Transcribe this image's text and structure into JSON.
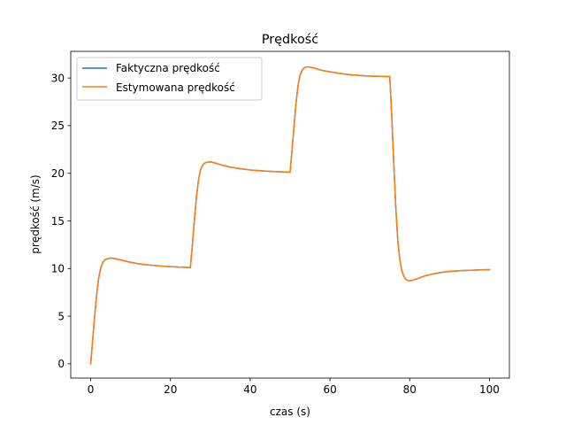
{
  "colors": {
    "actual": "#1f77b4",
    "estimated": "#ff7f0e"
  },
  "chart_data": {
    "type": "line",
    "title": "Prędkość",
    "xlabel": "czas (s)",
    "ylabel": "prędkość (m/s)",
    "xlim": [
      -5,
      105
    ],
    "ylim": [
      -1.5,
      32.8
    ],
    "xticks": [
      0,
      20,
      40,
      60,
      80,
      100
    ],
    "yticks": [
      0,
      5,
      10,
      15,
      20,
      25,
      30
    ],
    "grid": false,
    "legend_position": "top-left",
    "series": [
      {
        "name": "Faktyczna prędkość",
        "x": [
          0,
          0.5,
          1,
          1.5,
          2,
          2.5,
          3,
          3.5,
          4,
          5,
          6,
          8,
          10,
          12,
          15,
          18,
          20,
          22,
          24,
          25,
          25.5,
          26,
          26.5,
          27,
          27.5,
          28,
          28.5,
          29,
          30,
          31,
          33,
          35,
          38,
          40,
          43,
          45,
          48,
          50,
          50.5,
          51,
          51.5,
          52,
          52.5,
          53,
          53.5,
          54,
          55,
          56,
          58,
          60,
          63,
          65,
          68,
          70,
          73,
          75,
          75.5,
          76,
          76.5,
          77,
          77.5,
          78,
          78.5,
          79,
          80,
          81,
          82,
          84,
          86,
          88,
          90,
          93,
          96,
          98,
          100
        ],
        "y": [
          0,
          2.5,
          5.0,
          7.3,
          9.0,
          10.0,
          10.6,
          10.9,
          11.0,
          11.1,
          11.05,
          10.85,
          10.65,
          10.5,
          10.35,
          10.25,
          10.2,
          10.15,
          10.12,
          10.1,
          12.5,
          15.0,
          17.4,
          19.2,
          20.3,
          20.8,
          21.05,
          21.15,
          21.2,
          21.1,
          20.85,
          20.65,
          20.45,
          20.35,
          20.25,
          20.2,
          20.15,
          20.12,
          22.5,
          25.0,
          27.4,
          29.2,
          30.3,
          30.8,
          31.05,
          31.15,
          31.15,
          31.05,
          30.8,
          30.65,
          30.45,
          30.35,
          30.25,
          30.2,
          30.18,
          30.15,
          26.0,
          21.0,
          16.5,
          13.0,
          11.0,
          9.8,
          9.2,
          8.85,
          8.7,
          8.8,
          8.95,
          9.25,
          9.45,
          9.6,
          9.7,
          9.78,
          9.83,
          9.86,
          9.88
        ]
      },
      {
        "name": "Estymowana prędkość",
        "x": [
          0,
          0.5,
          1,
          1.5,
          2,
          2.5,
          3,
          3.5,
          4,
          5,
          6,
          8,
          10,
          12,
          15,
          18,
          20,
          22,
          24,
          25,
          25.5,
          26,
          26.5,
          27,
          27.5,
          28,
          28.5,
          29,
          30,
          31,
          33,
          35,
          38,
          40,
          43,
          45,
          48,
          50,
          50.5,
          51,
          51.5,
          52,
          52.5,
          53,
          53.5,
          54,
          55,
          56,
          58,
          60,
          63,
          65,
          68,
          70,
          73,
          75,
          75.5,
          76,
          76.5,
          77,
          77.5,
          78,
          78.5,
          79,
          80,
          81,
          82,
          84,
          86,
          88,
          90,
          93,
          96,
          98,
          100
        ],
        "y": [
          0,
          2.5,
          5.0,
          7.3,
          9.0,
          10.0,
          10.6,
          10.9,
          11.0,
          11.1,
          11.05,
          10.85,
          10.65,
          10.5,
          10.35,
          10.25,
          10.2,
          10.15,
          10.12,
          10.1,
          12.5,
          15.0,
          17.4,
          19.2,
          20.3,
          20.8,
          21.05,
          21.15,
          21.2,
          21.1,
          20.85,
          20.65,
          20.45,
          20.35,
          20.25,
          20.2,
          20.15,
          20.12,
          22.5,
          25.0,
          27.4,
          29.2,
          30.3,
          30.8,
          31.05,
          31.15,
          31.15,
          31.05,
          30.8,
          30.65,
          30.45,
          30.35,
          30.25,
          30.2,
          30.18,
          30.15,
          26.0,
          21.0,
          16.5,
          13.0,
          11.0,
          9.8,
          9.2,
          8.85,
          8.7,
          8.8,
          8.95,
          9.25,
          9.45,
          9.6,
          9.7,
          9.78,
          9.83,
          9.86,
          9.88
        ]
      }
    ]
  }
}
